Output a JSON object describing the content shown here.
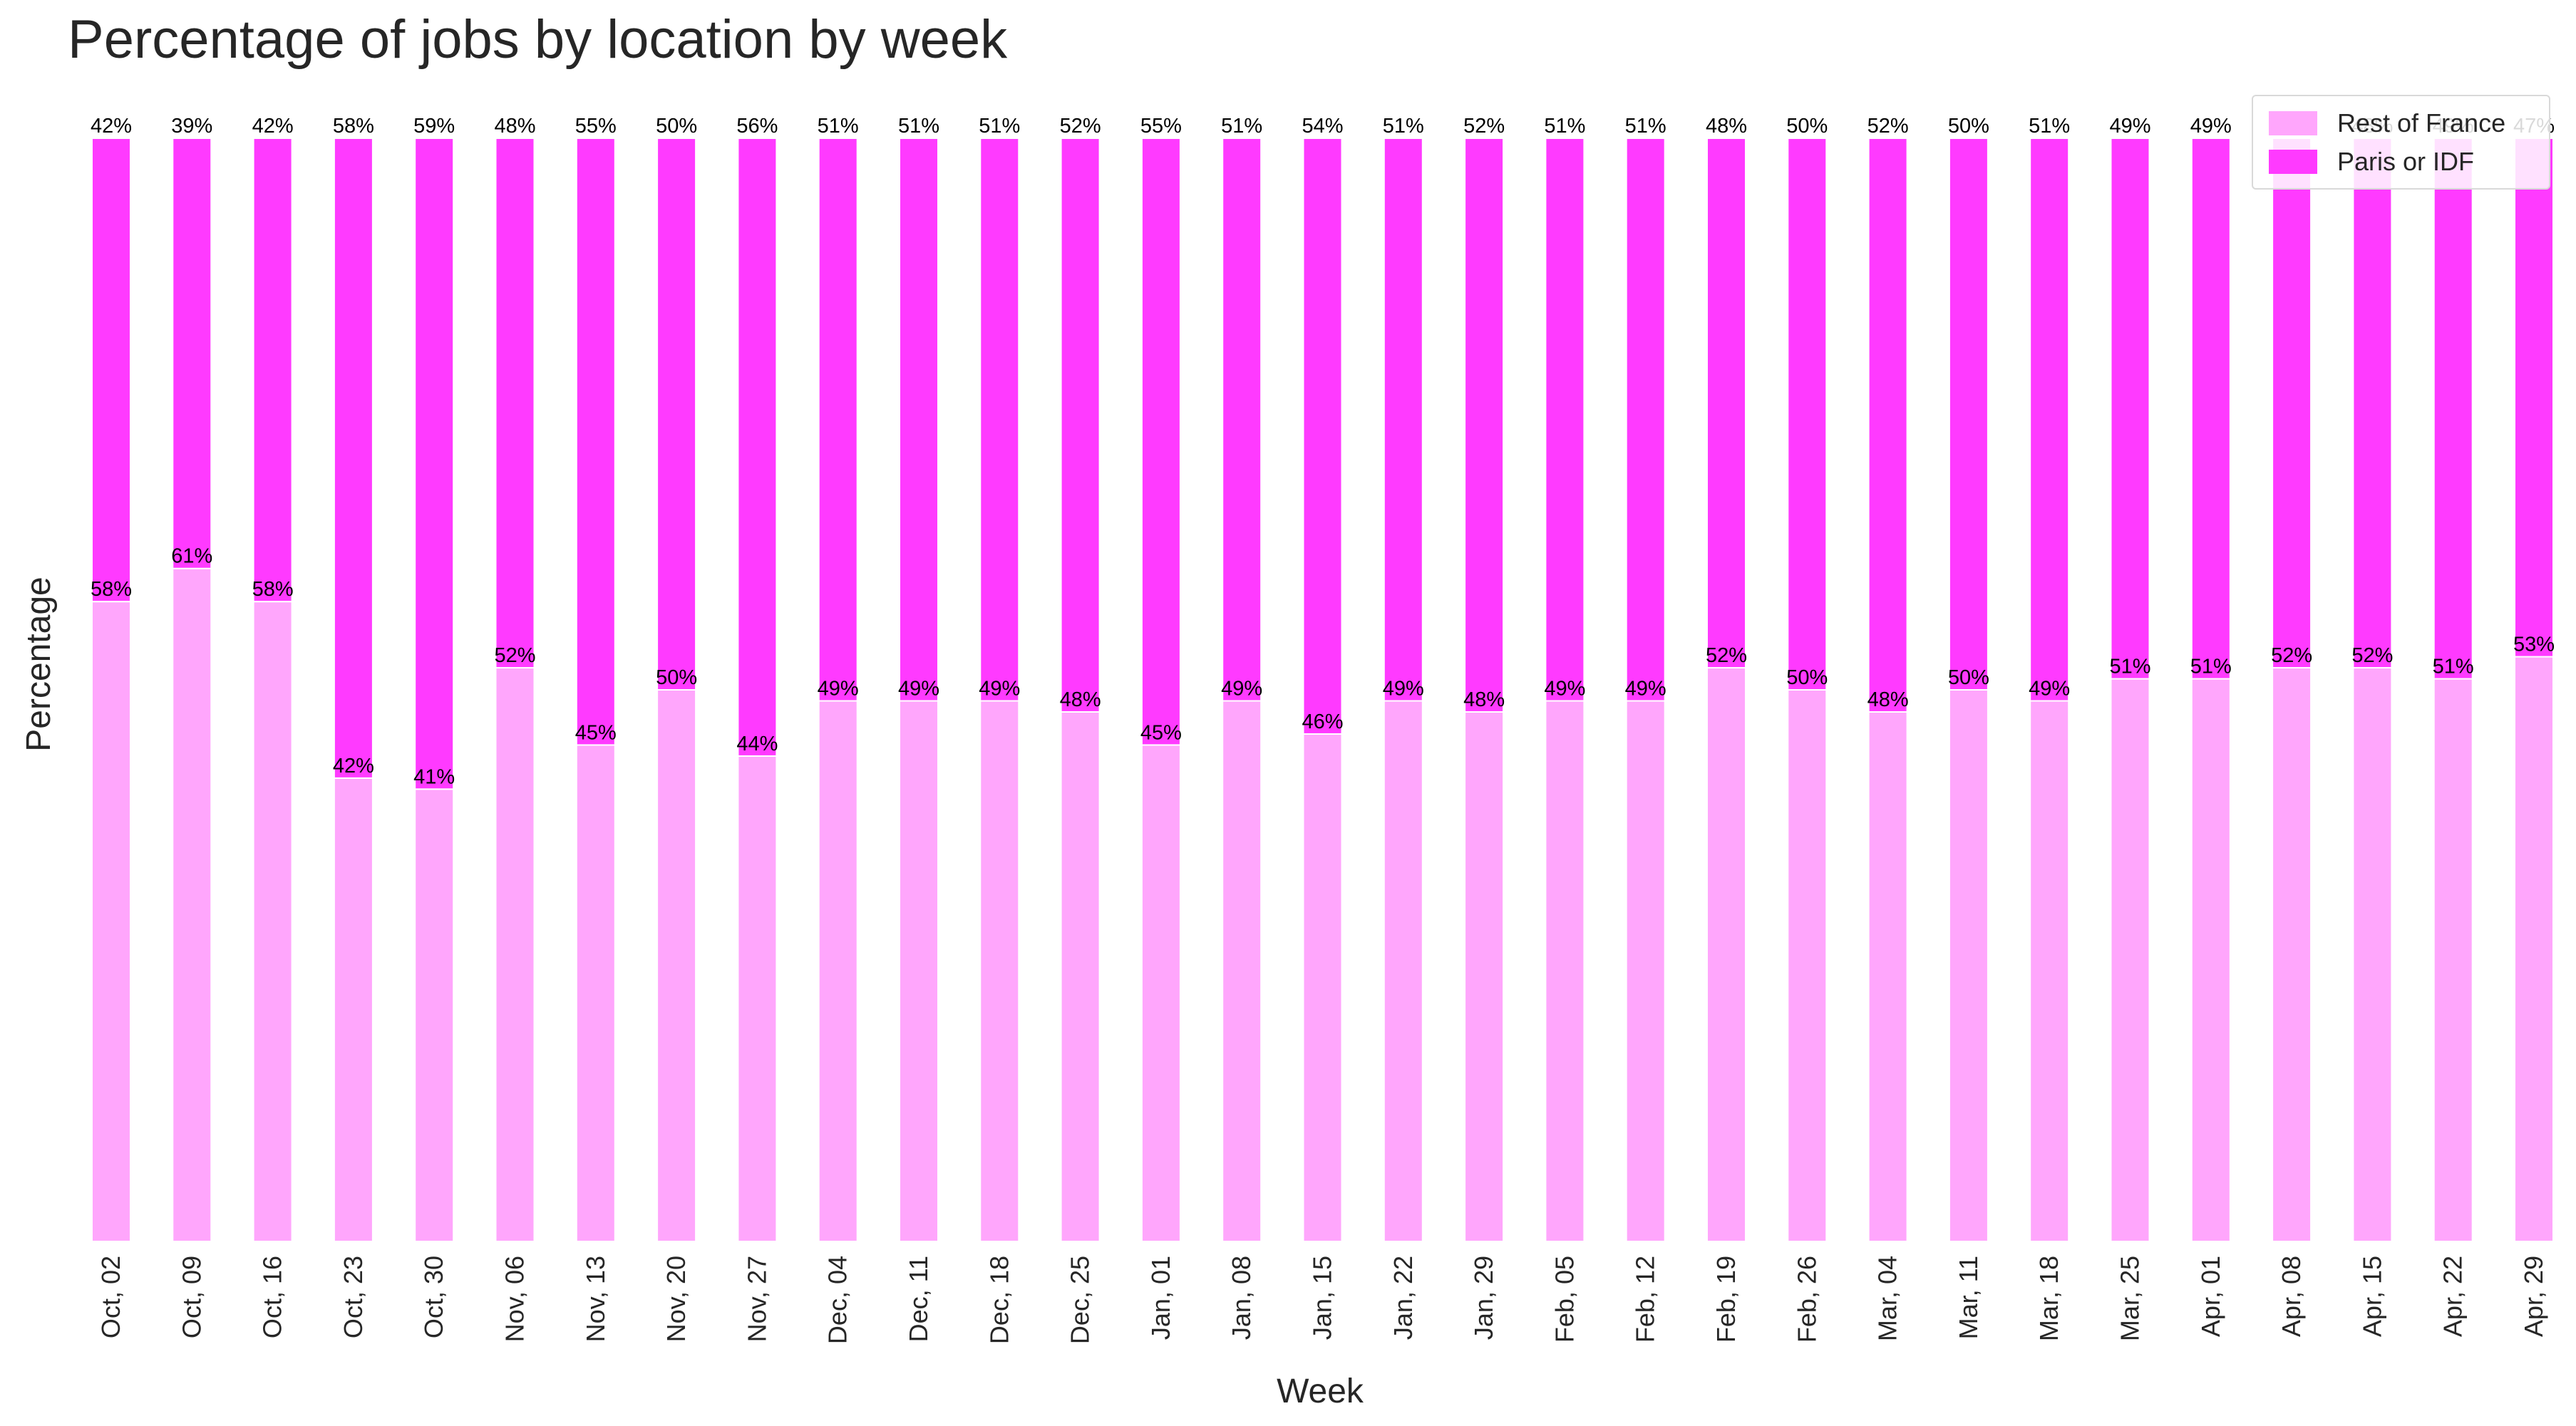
{
  "chart_data": {
    "type": "bar",
    "stacked": true,
    "title": "Percentage of jobs by location by week",
    "xlabel": "Week",
    "ylabel": "Percentage",
    "ylim": [
      0,
      100
    ],
    "grid": false,
    "legend_position": "top-right",
    "categories": [
      "Oct, 02",
      "Oct, 09",
      "Oct, 16",
      "Oct, 23",
      "Oct, 30",
      "Nov, 06",
      "Nov, 13",
      "Nov, 20",
      "Nov, 27",
      "Dec, 04",
      "Dec, 11",
      "Dec, 18",
      "Dec, 25",
      "Jan, 01",
      "Jan, 08",
      "Jan, 15",
      "Jan, 22",
      "Jan, 29",
      "Feb, 05",
      "Feb, 12",
      "Feb, 19",
      "Feb, 26",
      "Mar, 04",
      "Mar, 11",
      "Mar, 18",
      "Mar, 25",
      "Apr, 01",
      "Apr, 08",
      "Apr, 15",
      "Apr, 22",
      "Apr, 29"
    ],
    "series": [
      {
        "name": "Rest of France",
        "color": "#ffa6fc",
        "values": [
          58,
          61,
          58,
          42,
          41,
          52,
          45,
          50,
          44,
          49,
          49,
          49,
          48,
          45,
          49,
          46,
          49,
          48,
          49,
          49,
          52,
          50,
          48,
          50,
          49,
          51,
          51,
          52,
          52,
          51,
          53
        ],
        "labels": [
          "58%",
          "61%",
          "58%",
          "42%",
          "41%",
          "52%",
          "45%",
          "50%",
          "44%",
          "49%",
          "49%",
          "49%",
          "48%",
          "45%",
          "49%",
          "46%",
          "49%",
          "48%",
          "49%",
          "49%",
          "52%",
          "50%",
          "48%",
          "50%",
          "49%",
          "51%",
          "51%",
          "52%",
          "52%",
          "51%",
          "53%"
        ]
      },
      {
        "name": "Paris or IDF",
        "color": "#ff3aff",
        "values": [
          42,
          39,
          42,
          58,
          59,
          48,
          55,
          50,
          56,
          51,
          51,
          51,
          52,
          55,
          51,
          54,
          51,
          52,
          51,
          51,
          48,
          50,
          52,
          50,
          51,
          49,
          49,
          48,
          48,
          49,
          47
        ],
        "labels": [
          "42%",
          "39%",
          "42%",
          "58%",
          "59%",
          "48%",
          "55%",
          "50%",
          "56%",
          "51%",
          "51%",
          "51%",
          "52%",
          "55%",
          "51%",
          "54%",
          "51%",
          "52%",
          "51%",
          "51%",
          "48%",
          "50%",
          "52%",
          "50%",
          "51%",
          "49%",
          "49%",
          "48%",
          "48%",
          "49%",
          "47%"
        ]
      }
    ]
  }
}
